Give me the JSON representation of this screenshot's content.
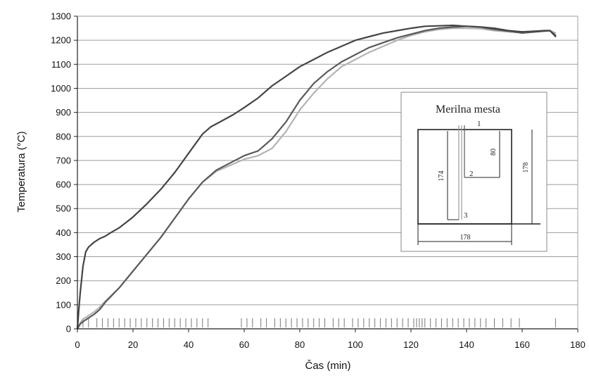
{
  "chart_data": {
    "type": "line",
    "xlabel": "Čas (min)",
    "ylabel": "Temperatura (°C)",
    "xlim": [
      0,
      180
    ],
    "ylim": [
      0,
      1300
    ],
    "xticks": [
      0,
      20,
      40,
      60,
      80,
      100,
      120,
      140,
      160,
      180
    ],
    "yticks": [
      0,
      100,
      200,
      300,
      400,
      500,
      600,
      700,
      800,
      900,
      1000,
      1100,
      1200,
      1300
    ],
    "grid": "horizontal",
    "colors": {
      "curve_1": "#444444",
      "curve_2": "#5a5a5a",
      "curve_3": "#b3b3b3",
      "grid": "#9e9e9e",
      "axis": "#222222"
    },
    "series": [
      {
        "x": [
          0,
          0.5,
          1,
          2,
          3,
          4,
          6,
          8,
          10,
          12,
          15,
          20,
          25,
          30,
          35,
          40,
          45,
          48,
          52,
          56,
          60,
          65,
          70,
          75,
          80,
          85,
          90,
          95,
          100,
          105,
          110,
          115,
          120,
          125,
          130,
          135,
          140,
          145,
          150,
          155,
          160,
          165,
          168,
          170,
          172
        ],
        "y": [
          0,
          80,
          150,
          260,
          320,
          340,
          360,
          375,
          385,
          400,
          420,
          465,
          520,
          580,
          650,
          730,
          810,
          840,
          865,
          890,
          920,
          960,
          1010,
          1050,
          1090,
          1120,
          1150,
          1175,
          1200,
          1215,
          1230,
          1240,
          1250,
          1258,
          1260,
          1262,
          1258,
          1255,
          1250,
          1240,
          1235,
          1238,
          1240,
          1240,
          1220
        ]
      },
      {
        "x": [
          0,
          1,
          2,
          4,
          6,
          8,
          10,
          15,
          20,
          25,
          30,
          35,
          40,
          45,
          50,
          55,
          60,
          65,
          70,
          75,
          80,
          85,
          90,
          95,
          100,
          105,
          110,
          115,
          120,
          125,
          130,
          135,
          140,
          145,
          150,
          155,
          160,
          165,
          170,
          172
        ],
        "y": [
          0,
          20,
          30,
          45,
          60,
          80,
          110,
          170,
          240,
          310,
          380,
          460,
          540,
          610,
          660,
          690,
          720,
          740,
          790,
          860,
          950,
          1020,
          1070,
          1110,
          1140,
          1170,
          1190,
          1210,
          1225,
          1240,
          1250,
          1255,
          1258,
          1255,
          1245,
          1238,
          1230,
          1235,
          1240,
          1215
        ]
      },
      {
        "x": [
          0,
          1,
          2,
          4,
          6,
          8,
          10,
          15,
          20,
          25,
          30,
          35,
          40,
          45,
          50,
          55,
          60,
          65,
          70,
          75,
          80,
          85,
          90,
          95,
          100,
          105,
          110,
          115,
          120,
          125,
          130,
          135,
          140,
          145,
          150,
          155,
          160,
          165,
          170,
          172
        ],
        "y": [
          0,
          25,
          40,
          55,
          70,
          90,
          115,
          170,
          240,
          310,
          380,
          460,
          540,
          610,
          655,
          680,
          705,
          720,
          750,
          820,
          910,
          980,
          1040,
          1090,
          1120,
          1150,
          1175,
          1200,
          1220,
          1235,
          1245,
          1250,
          1250,
          1248,
          1240,
          1235,
          1232,
          1238,
          1240,
          1230
        ]
      }
    ],
    "rug_marks_x": [
      2,
      4,
      7,
      9,
      11,
      13,
      15,
      17,
      19,
      21,
      23,
      25,
      27,
      29,
      31,
      33,
      35,
      37,
      39,
      41,
      43,
      45,
      47,
      59,
      61,
      63,
      66,
      68,
      71,
      73,
      75,
      77,
      79,
      81,
      83,
      85,
      87,
      89,
      92,
      94,
      96,
      99,
      101,
      103,
      105,
      107,
      109,
      111,
      113,
      115,
      117,
      119,
      121,
      122,
      123,
      124,
      125,
      127,
      129,
      131,
      133,
      135,
      137,
      139,
      141,
      143,
      145,
      147,
      150,
      153,
      156,
      159,
      172
    ],
    "inset": {
      "title": "Merilna mesta",
      "point_labels": [
        "1",
        "2",
        "3"
      ],
      "dimension_labels": [
        "174",
        "80",
        "178",
        "178"
      ]
    }
  }
}
